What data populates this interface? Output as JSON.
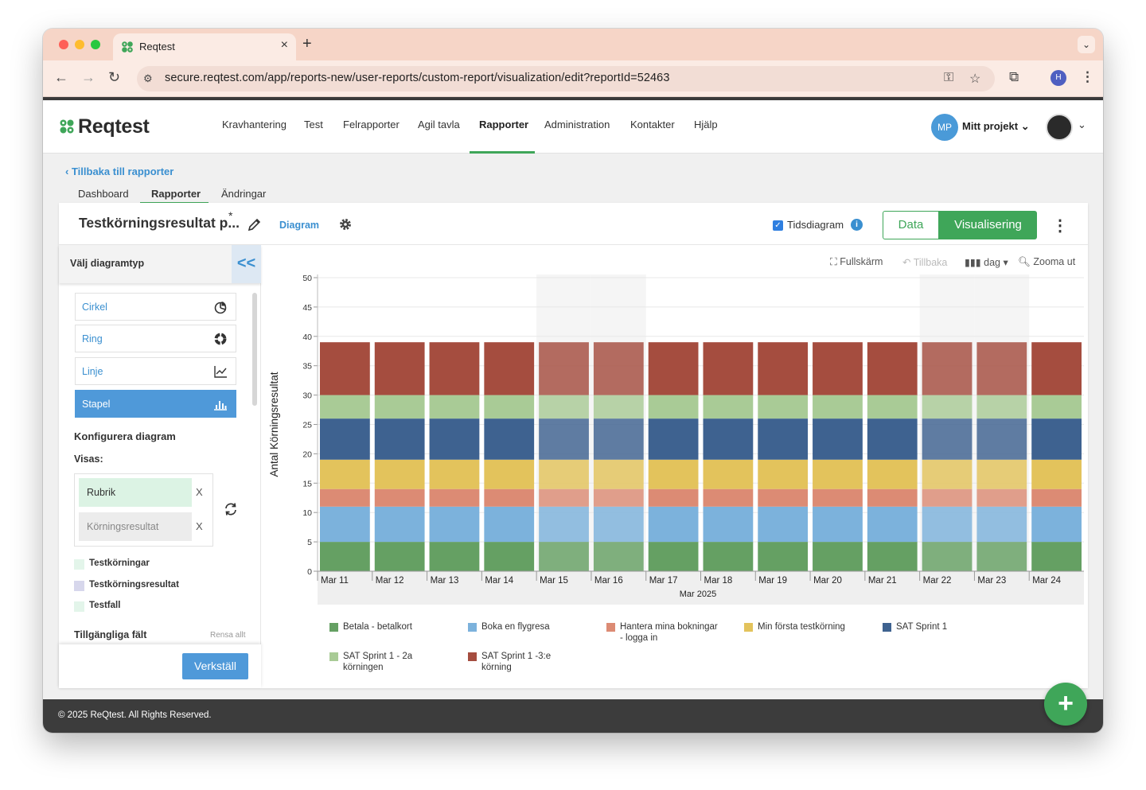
{
  "browser": {
    "tab_title": "Reqtest",
    "close_glyph": "×",
    "newtab_glyph": "+",
    "url": "secure.reqtest.com/app/reports-new/user-reports/custom-report/visualization/edit?reportId=52463",
    "profile_initial": "H"
  },
  "app": {
    "logo_text": "Reqtest",
    "menu": [
      {
        "label": "Kravhantering"
      },
      {
        "label": "Test"
      },
      {
        "label": "Felrapporter"
      },
      {
        "label": "Agil tavla"
      },
      {
        "label": "Rapporter",
        "active": true
      },
      {
        "label": "Administration"
      },
      {
        "label": "Kontakter"
      },
      {
        "label": "Hjälp"
      }
    ],
    "project_initials": "MP",
    "project_name": "Mitt projekt",
    "back_link": "Tillbaka till rapporter",
    "subtabs": [
      {
        "label": "Dashboard"
      },
      {
        "label": "Rapporter",
        "active": true
      },
      {
        "label": "Ändringar"
      }
    ],
    "footer_text": "© 2025 ReQtest. All Rights Reserved.",
    "fab_label": "+"
  },
  "report": {
    "title": "Testkörningsresultat p...",
    "unsaved_marker": "*",
    "diagram_link": "Diagram",
    "tidsdiagram_label": "Tidsdiagram",
    "tidsdiagram_checked": true,
    "info_glyph": "i",
    "btn_data": "Data",
    "btn_vis": "Visualisering"
  },
  "left_panel": {
    "header": "Välj diagramtyp",
    "collapse_glyph": "<<",
    "types": [
      {
        "label": "Cirkel",
        "icon": "pie-chart-icon"
      },
      {
        "label": "Ring",
        "icon": "donut-chart-icon"
      },
      {
        "label": "Linje",
        "icon": "line-chart-icon"
      },
      {
        "label": "Stapel",
        "icon": "bar-chart-icon",
        "selected": true
      }
    ],
    "configure_title": "Konfigurera diagram",
    "shown_label": "Visas:",
    "shown_fields": [
      {
        "label": "Rubrik",
        "remove": "X"
      },
      {
        "label": "Körningsresultat",
        "remove": "X"
      }
    ],
    "fields": [
      {
        "label": "Testkörningar",
        "color": "#e3f5ea"
      },
      {
        "label": "Testkörningsresultat",
        "color": "#d7d7ec"
      },
      {
        "label": "Testfall",
        "color": "#e3f5ea"
      }
    ],
    "available_title": "Tillgängliga fält",
    "clear_all": "Rensa allt",
    "apply_button": "Verkställ"
  },
  "chart_tools": {
    "fullscreen": "Fullskärm",
    "back": "Tillbaka",
    "interval": "dag",
    "zoom_out": "Zooma ut"
  },
  "chart_data": {
    "type": "bar",
    "stacked": true,
    "ylabel": "Antal Körningsresultat",
    "xlabel": "Mar 2025",
    "ylim": [
      0,
      50
    ],
    "yticks": [
      0,
      5,
      10,
      15,
      20,
      25,
      30,
      35,
      40,
      45,
      50
    ],
    "categories": [
      "Mar 11",
      "Mar 12",
      "Mar 13",
      "Mar 14",
      "Mar 15",
      "Mar 16",
      "Mar 17",
      "Mar 18",
      "Mar 19",
      "Mar 20",
      "Mar 21",
      "Mar 22",
      "Mar 23",
      "Mar 24"
    ],
    "weekend_categories": [
      "Mar 15",
      "Mar 16",
      "Mar 22",
      "Mar 23"
    ],
    "grid": true,
    "legend_position": "bottom",
    "series": [
      {
        "name": "Betala - betalkort",
        "color": "#65a063",
        "values": [
          5,
          5,
          5,
          5,
          5,
          5,
          5,
          5,
          5,
          5,
          5,
          5,
          5,
          5
        ]
      },
      {
        "name": "Boka en flygresa",
        "color": "#7cb2dc",
        "values": [
          6,
          6,
          6,
          6,
          6,
          6,
          6,
          6,
          6,
          6,
          6,
          6,
          6,
          6
        ]
      },
      {
        "name": "Hantera mina bokningar - logga in",
        "color": "#dc8b74",
        "values": [
          3,
          3,
          3,
          3,
          3,
          3,
          3,
          3,
          3,
          3,
          3,
          3,
          3,
          3
        ]
      },
      {
        "name": "Min första testkörning",
        "color": "#e3c35c",
        "values": [
          5,
          5,
          5,
          5,
          5,
          5,
          5,
          5,
          5,
          5,
          5,
          5,
          5,
          5
        ]
      },
      {
        "name": "SAT Sprint 1",
        "color": "#3e6290",
        "values": [
          7,
          7,
          7,
          7,
          7,
          7,
          7,
          7,
          7,
          7,
          7,
          7,
          7,
          7
        ]
      },
      {
        "name": "SAT Sprint 1 - 2a körningen",
        "color": "#a9cb96",
        "values": [
          4,
          4,
          4,
          4,
          4,
          4,
          4,
          4,
          4,
          4,
          4,
          4,
          4,
          4
        ]
      },
      {
        "name": "SAT Sprint 1 -3:e körning",
        "color": "#a54d3f",
        "values": [
          9,
          9,
          9,
          9,
          9,
          9,
          9,
          9,
          9,
          9,
          9,
          9,
          9,
          9
        ]
      }
    ]
  }
}
